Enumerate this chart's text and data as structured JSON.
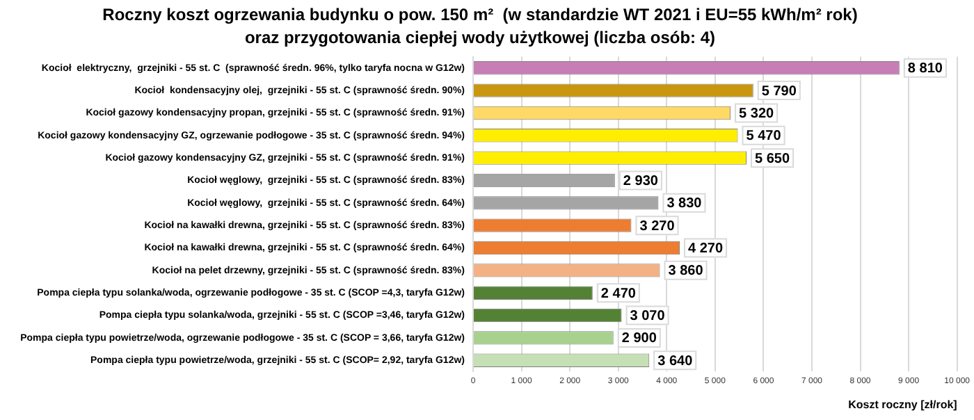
{
  "chart_data": {
    "type": "bar",
    "orientation": "horizontal",
    "title": "Roczny koszt ogrzewania budynku o pow. 150 m²  (w standardzie WT 2021 i EU=55 kWh/m² rok)",
    "subtitle": "oraz przygotowania ciepłej wody użytkowej (liczba osób: 4)",
    "xlabel": "Koszt roczny [zł/rok]",
    "categories": [
      "Kocioł  elektryczny,  grzejniki - 55 st. C  (sprawność średn. 96%, tylko taryfa nocna w G12w)",
      "Kocioł  kondensacyjny olej,  grzejniki - 55 st. C (sprawność średn. 90%)",
      "Kocioł gazowy kondensacyjny propan, grzejniki - 55 st. C (sprawność średn. 91%)",
      "Kocioł gazowy kondensacyjny GZ, ogrzewanie podłogowe - 35 st. C (sprawność średn. 94%)",
      "Kocioł gazowy kondensacyjny GZ, grzejniki - 55 st. C (sprawność średn. 91%)",
      "Kocioł węglowy,  grzejniki - 55 st. C (sprawność średn. 83%)",
      "Kocioł węglowy,  grzejniki - 55 st. C (sprawność średn. 64%)",
      "Kocioł na kawałki drewna, grzejniki - 55 st. C (sprawność średn. 83%)",
      "Kocioł na kawałki drewna, grzejniki - 55 st. C (sprawność średn. 64%)",
      "Kocioł na pelet drzewny, grzejniki - 55 st. C (sprawność średn. 83%)",
      "Pompa ciepła typu solanka/woda, ogrzewanie podłogowe - 35 st. C (SCOP =4,3, taryfa G12w)",
      "Pompa ciepła typu solanka/woda, grzejniki - 55 st. C (SCOP =3,46, taryfa G12w)",
      "Pompa ciepła typu powietrze/woda, ogrzewanie podłogowe - 35 st. C (SCOP = 3,66, taryfa G12w)",
      "Pompa ciepła typu powietrze/woda, grzejniki - 55 st. C (SCOP= 2,92, taryfa G12w)"
    ],
    "values": [
      8810,
      5790,
      5320,
      5470,
      5650,
      2930,
      3830,
      3270,
      4270,
      3860,
      2470,
      3070,
      2900,
      3640
    ],
    "value_labels": [
      "8 810",
      "5 790",
      "5 320",
      "5 470",
      "5 650",
      "2 930",
      "3 830",
      "3 270",
      "4 270",
      "3 860",
      "2 470",
      "3 070",
      "2 900",
      "3 640"
    ],
    "colors": [
      "#c77db5",
      "#c8960f",
      "#ffd966",
      "#ffee00",
      "#ffee00",
      "#a5a5a5",
      "#a5a5a5",
      "#ed7d31",
      "#ed7d31",
      "#f4b183",
      "#548235",
      "#548235",
      "#a9d18e",
      "#c5e0b4"
    ],
    "xlim": [
      0,
      10000
    ],
    "xticks": [
      0,
      {
        "value": 1000,
        "label": "1 000"
      },
      {
        "value": 2000,
        "label": "2 000"
      },
      {
        "value": 3000,
        "label": "3 000"
      },
      {
        "value": 4000,
        "label": "4 000"
      },
      {
        "value": 5000,
        "label": "5 000"
      },
      {
        "value": 6000,
        "label": "6 000"
      },
      {
        "value": 7000,
        "label": "7 000"
      },
      {
        "value": 8000,
        "label": "8 000"
      },
      {
        "value": 9000,
        "label": "9 000"
      },
      {
        "value": 10000,
        "label": "10 000"
      }
    ],
    "grid": "x",
    "legend": false
  }
}
